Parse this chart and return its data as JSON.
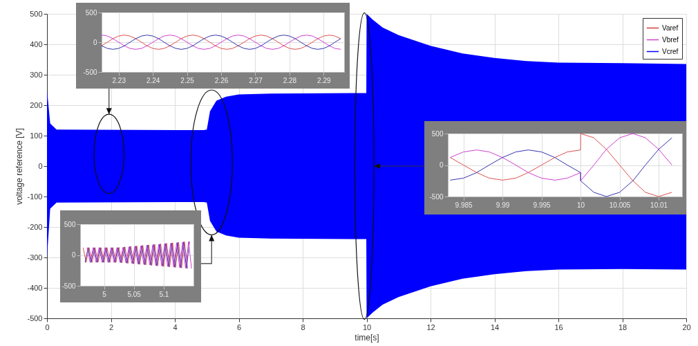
{
  "chart_data": [
    {
      "type": "line",
      "xlabel": "time[s]",
      "ylabel": "voltage reference [V]",
      "xlim": [
        0,
        20
      ],
      "xticks": [
        0,
        2,
        4,
        6,
        8,
        10,
        12,
        14,
        16,
        18,
        20
      ],
      "ylim": [
        -500,
        500
      ],
      "yticks": [
        -500,
        -400,
        -300,
        -200,
        -100,
        0,
        100,
        200,
        300,
        400,
        500
      ],
      "grid": true,
      "legend": "top right",
      "x": [
        0,
        0.1,
        0.3,
        4.9,
        5,
        5.1,
        5.3,
        5.6,
        6,
        7,
        9.99,
        10,
        10.2,
        10.5,
        11,
        12,
        13,
        14,
        15,
        16,
        18,
        20
      ],
      "series": [
        {
          "name": "Varef",
          "color": "#d03c3c",
          "values": [
            null,
            null,
            null,
            null,
            null,
            null,
            null,
            null,
            null,
            null,
            null,
            null,
            null,
            null,
            null,
            null,
            null,
            null,
            null,
            null,
            null,
            null
          ]
        },
        {
          "name": "Vbref",
          "color": "#cc44cc",
          "values": [
            null,
            null,
            null,
            null,
            null,
            null,
            null,
            null,
            null,
            null,
            null,
            null,
            null,
            null,
            null,
            null,
            null,
            null,
            null,
            null,
            null,
            null
          ]
        },
        {
          "name": "Vcref",
          "color": "#0000ff",
          "values": [
            null,
            null,
            null,
            null,
            null,
            null,
            null,
            null,
            null,
            null,
            null,
            null,
            null,
            null,
            null,
            null,
            null,
            null,
            null,
            null,
            null,
            null
          ],
          "lower": [
            -300,
            -140,
            -120,
            -118,
            -120,
            -180,
            -215,
            -228,
            -235,
            -238,
            -240,
            -500,
            -480,
            -455,
            -430,
            -395,
            -370,
            -355,
            -345,
            -340,
            -338,
            -340
          ],
          "upper": [
            250,
            140,
            120,
            118,
            120,
            180,
            215,
            228,
            235,
            238,
            240,
            500,
            480,
            455,
            430,
            395,
            370,
            355,
            345,
            340,
            338,
            335
          ]
        }
      ]
    },
    {
      "type": "line",
      "xlim": [
        2.225,
        2.296
      ],
      "xticks": [
        2.23,
        2.24,
        2.25,
        2.26,
        2.27,
        2.28,
        2.29
      ],
      "ylim": [
        -500,
        500
      ],
      "yticks": [
        -500,
        0,
        500
      ],
      "grid": true,
      "x": [
        2.225,
        2.2267,
        2.2283,
        2.23,
        2.2317,
        2.2333,
        2.235,
        2.2367,
        2.2383,
        2.24,
        2.2417,
        2.2433,
        2.245,
        2.2467,
        2.2483,
        2.25,
        2.2517,
        2.2533,
        2.255,
        2.2567,
        2.2583,
        2.26,
        2.2617,
        2.2633,
        2.265,
        2.2667,
        2.2683,
        2.27,
        2.2717,
        2.2733,
        2.275,
        2.2767,
        2.2783,
        2.28,
        2.2817,
        2.2833,
        2.285,
        2.2867,
        2.2883,
        2.29,
        2.2917,
        2.2933,
        2.295
      ],
      "series": [
        {
          "color": "#e05050",
          "values": [
            -60,
            0,
            60,
            104,
            120,
            104,
            60,
            0,
            -60,
            -104,
            -120,
            -104,
            -60,
            0,
            60,
            104,
            120,
            104,
            60,
            0,
            -60,
            -104,
            -120,
            -104,
            -60,
            0,
            60,
            104,
            120,
            104,
            60,
            0,
            -60,
            -104,
            -120,
            -104,
            -60,
            0,
            60,
            104,
            120,
            104,
            60
          ]
        },
        {
          "color": "#d040d0",
          "values": [
            120,
            104,
            60,
            0,
            -60,
            -104,
            -120,
            -104,
            -60,
            0,
            60,
            104,
            120,
            104,
            60,
            0,
            -60,
            -104,
            -120,
            -104,
            -60,
            0,
            60,
            104,
            120,
            104,
            60,
            0,
            -60,
            -104,
            -120,
            -104,
            -60,
            0,
            60,
            104,
            120,
            104,
            60,
            0,
            -60,
            -104,
            -120
          ]
        },
        {
          "color": "#3434b0",
          "values": [
            -60,
            -104,
            -120,
            -104,
            -60,
            0,
            60,
            104,
            120,
            104,
            60,
            0,
            -60,
            -104,
            -120,
            -104,
            -60,
            0,
            60,
            104,
            120,
            104,
            60,
            0,
            -60,
            -104,
            -120,
            -104,
            -60,
            0,
            60,
            104,
            120,
            104,
            60,
            0,
            -60,
            -104,
            -120,
            -104,
            -60,
            0,
            60
          ]
        }
      ]
    },
    {
      "type": "line",
      "xlim": [
        9.983,
        10.013
      ],
      "xticks": [
        9.985,
        9.99,
        9.995,
        10,
        10.005,
        10.01
      ],
      "ylim": [
        -500,
        500
      ],
      "yticks": [
        -500,
        0,
        500
      ],
      "grid": true,
      "x": [
        9.9833,
        9.985,
        9.9867,
        9.9883,
        9.99,
        9.9917,
        9.9933,
        9.995,
        9.9967,
        9.9983,
        10,
        10,
        10.0017,
        10.0033,
        10.005,
        10.0067,
        10.0083,
        10.01,
        10.0117
      ],
      "series": [
        {
          "color": "#e05050",
          "values": [
            120,
            0,
            -120,
            -208,
            -240,
            -208,
            -120,
            0,
            120,
            208,
            240,
            500,
            433,
            250,
            0,
            -250,
            -433,
            -500,
            -433
          ]
        },
        {
          "color": "#d040d0",
          "values": [
            120,
            208,
            240,
            208,
            120,
            0,
            -120,
            -208,
            -240,
            -208,
            -120,
            -250,
            0,
            250,
            433,
            500,
            433,
            250,
            0
          ]
        },
        {
          "color": "#3434b0",
          "values": [
            -240,
            -208,
            -120,
            0,
            120,
            208,
            240,
            208,
            120,
            0,
            -120,
            -250,
            -433,
            -500,
            -433,
            -250,
            0,
            250,
            433
          ]
        }
      ]
    },
    {
      "type": "line",
      "xlim": [
        4.96,
        5.15
      ],
      "xticks": [
        5,
        5.05,
        5.1
      ],
      "ylim": [
        -500,
        500
      ],
      "yticks": [
        -500,
        0,
        500
      ],
      "grid": true,
      "series": [
        {
          "color": "#e05050",
          "x": [
            4.965,
            4.97,
            4.975,
            4.98,
            4.985,
            4.99,
            4.995,
            5,
            5.005,
            5.01,
            5.015,
            5.02,
            5.025,
            5.03,
            5.035,
            5.04,
            5.045,
            5.05,
            5.055,
            5.06,
            5.065,
            5.07,
            5.075,
            5.08,
            5.085,
            5.09,
            5.095,
            5.1,
            5.105,
            5.11,
            5.115,
            5.12,
            5.125,
            5.13,
            5.135,
            5.14
          ],
          "values": [
            120,
            -120,
            120,
            -120,
            120,
            -120,
            120,
            -120,
            120,
            -120,
            120,
            -120,
            124,
            -128,
            133,
            -137,
            141,
            -145,
            149,
            -153,
            158,
            -162,
            166,
            -170,
            174,
            -178,
            183,
            -187,
            191,
            -195,
            199,
            -203,
            208,
            -212,
            216,
            -220
          ]
        },
        {
          "color": "#3434b0",
          "x": [
            4.9683,
            4.9733,
            4.9783,
            4.9833,
            4.9883,
            4.9933,
            4.9983,
            5.0033,
            5.0083,
            5.0133,
            5.0183,
            5.0233,
            5.0283,
            5.0333,
            5.0383,
            5.0433,
            5.0483,
            5.0533,
            5.0583,
            5.0633,
            5.0683,
            5.0733,
            5.0783,
            5.0833,
            5.0883,
            5.0933,
            5.0983,
            5.1033,
            5.1083,
            5.1133,
            5.1183,
            5.1233,
            5.1283,
            5.1333,
            5.1383,
            5.1433
          ],
          "values": [
            -120,
            120,
            -120,
            120,
            -120,
            120,
            -120,
            120,
            -120,
            120,
            -120,
            120,
            -124,
            128,
            -133,
            137,
            -141,
            145,
            -149,
            153,
            -158,
            162,
            -166,
            170,
            -174,
            178,
            -183,
            187,
            -191,
            195,
            -199,
            203,
            -208,
            212,
            -216,
            220
          ]
        },
        {
          "color": "#d040d0",
          "x": [
            4.9717,
            4.9767,
            4.9817,
            4.9867,
            4.9917,
            4.9967,
            5.0017,
            5.0067,
            5.0117,
            5.0167,
            5.0217,
            5.0267,
            5.0317,
            5.0367,
            5.0417,
            5.0467,
            5.0517,
            5.0567,
            5.0617,
            5.0667,
            5.0717,
            5.0767,
            5.0817,
            5.0867,
            5.0917,
            5.0967,
            5.1017,
            5.1067,
            5.1117,
            5.1167,
            5.1217,
            5.1267,
            5.1317,
            5.1367,
            5.1417,
            5.1467
          ],
          "values": [
            120,
            -120,
            120,
            -120,
            120,
            -120,
            120,
            -120,
            120,
            -120,
            120,
            -120,
            124,
            -128,
            133,
            -137,
            141,
            -145,
            149,
            -153,
            158,
            -162,
            166,
            -170,
            174,
            -178,
            183,
            -187,
            191,
            -195,
            199,
            -203,
            208,
            -212,
            216,
            -220
          ]
        }
      ]
    }
  ]
}
